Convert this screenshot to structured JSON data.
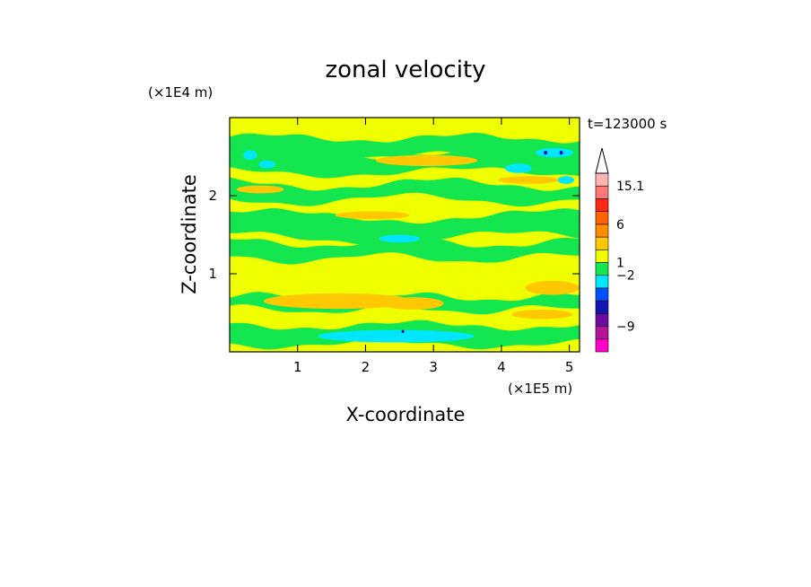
{
  "chart_data": {
    "type": "heatmap",
    "title": "zonal velocity",
    "xlabel": "X-coordinate",
    "ylabel": "Z-coordinate",
    "x_unit": "(×1E5 m)",
    "y_unit": "(×1E4 m)",
    "time_label": "t=123000 s",
    "xlim": [
      0,
      5.15
    ],
    "ylim": [
      0,
      3.0
    ],
    "x_ticks": [
      "1",
      "2",
      "3",
      "4",
      "5"
    ],
    "y_ticks": [
      "1",
      "2"
    ],
    "x_tick_values": [
      1,
      2,
      3,
      4,
      5
    ],
    "y_tick_values": [
      1,
      2
    ],
    "colorbar": {
      "labels": [
        "15.1",
        "6",
        "1",
        "−2",
        "−9"
      ],
      "label_values": [
        15.1,
        6,
        1,
        -2,
        -9
      ],
      "levels": [
        {
          "color": "#ff00c8"
        },
        {
          "color": "#b4149a"
        },
        {
          "color": "#6e0aa0"
        },
        {
          "color": "#1414b4"
        },
        {
          "color": "#0050ff"
        },
        {
          "color": "#00e6ff"
        },
        {
          "color": "#14e650"
        },
        {
          "color": "#f0ff00"
        },
        {
          "color": "#ffc800"
        },
        {
          "color": "#ff8c00"
        },
        {
          "color": "#ff6400"
        },
        {
          "color": "#ff2a14"
        },
        {
          "color": "#ff7878"
        },
        {
          "color": "#ffb4b4"
        }
      ]
    },
    "background_color": "#f0ff00",
    "bands": [
      {
        "z": 2.62,
        "halfwidth": 0.12,
        "color": "#14e650",
        "amp": 0.05,
        "freq": 2.2,
        "phase": 0.3
      },
      {
        "z": 2.42,
        "halfwidth": 0.12,
        "color": "#14e650",
        "amp": 0.06,
        "freq": 1.7,
        "phase": 1.1
      },
      {
        "z": 2.05,
        "halfwidth": 0.1,
        "color": "#14e650",
        "amp": 0.07,
        "freq": 1.9,
        "phase": 2.0
      },
      {
        "z": 1.6,
        "halfwidth": 0.14,
        "color": "#14e650",
        "amp": 0.08,
        "freq": 1.5,
        "phase": 0.7
      },
      {
        "z": 1.3,
        "halfwidth": 0.1,
        "color": "#14e650",
        "amp": 0.06,
        "freq": 2.4,
        "phase": 1.6
      },
      {
        "z": 0.62,
        "halfwidth": 0.08,
        "color": "#14e650",
        "amp": 0.05,
        "freq": 2.8,
        "phase": 0.2
      },
      {
        "z": 0.22,
        "halfwidth": 0.12,
        "color": "#14e650",
        "amp": 0.05,
        "freq": 2.0,
        "phase": 2.5
      }
    ],
    "patches": [
      {
        "x": 2.9,
        "z": 2.45,
        "rx": 0.75,
        "rz": 0.07,
        "color": "#ffc800"
      },
      {
        "x": 0.45,
        "z": 2.08,
        "rx": 0.35,
        "rz": 0.05,
        "color": "#ffc800"
      },
      {
        "x": 2.1,
        "z": 1.75,
        "rx": 0.55,
        "rz": 0.05,
        "color": "#ffc800"
      },
      {
        "x": 4.4,
        "z": 2.2,
        "rx": 0.45,
        "rz": 0.05,
        "color": "#ffc800"
      },
      {
        "x": 1.6,
        "z": 0.65,
        "rx": 1.1,
        "rz": 0.1,
        "color": "#ffc800"
      },
      {
        "x": 2.7,
        "z": 0.62,
        "rx": 0.45,
        "rz": 0.08,
        "color": "#ffc800"
      },
      {
        "x": 4.75,
        "z": 0.82,
        "rx": 0.4,
        "rz": 0.09,
        "color": "#ffc800"
      },
      {
        "x": 4.6,
        "z": 0.48,
        "rx": 0.45,
        "rz": 0.06,
        "color": "#ffc800"
      },
      {
        "x": 0.3,
        "z": 2.52,
        "rx": 0.1,
        "rz": 0.06,
        "color": "#00e6ff"
      },
      {
        "x": 0.55,
        "z": 2.4,
        "rx": 0.12,
        "rz": 0.05,
        "color": "#00e6ff"
      },
      {
        "x": 4.25,
        "z": 2.35,
        "rx": 0.2,
        "rz": 0.06,
        "color": "#00e6ff"
      },
      {
        "x": 4.78,
        "z": 2.55,
        "rx": 0.28,
        "rz": 0.06,
        "color": "#00e6ff"
      },
      {
        "x": 2.5,
        "z": 1.45,
        "rx": 0.3,
        "rz": 0.05,
        "color": "#00e6ff"
      },
      {
        "x": 2.45,
        "z": 0.2,
        "rx": 1.15,
        "rz": 0.08,
        "color": "#00e6ff"
      },
      {
        "x": 4.95,
        "z": 2.2,
        "rx": 0.12,
        "rz": 0.05,
        "color": "#00e6ff"
      },
      {
        "x": 4.65,
        "z": 2.55,
        "rx": 0.025,
        "rz": 0.025,
        "color": "#1414b4"
      },
      {
        "x": 4.88,
        "z": 2.55,
        "rx": 0.025,
        "rz": 0.025,
        "color": "#1414b4"
      },
      {
        "x": 2.55,
        "z": 0.26,
        "rx": 0.02,
        "rz": 0.02,
        "color": "#1414b4"
      }
    ]
  }
}
